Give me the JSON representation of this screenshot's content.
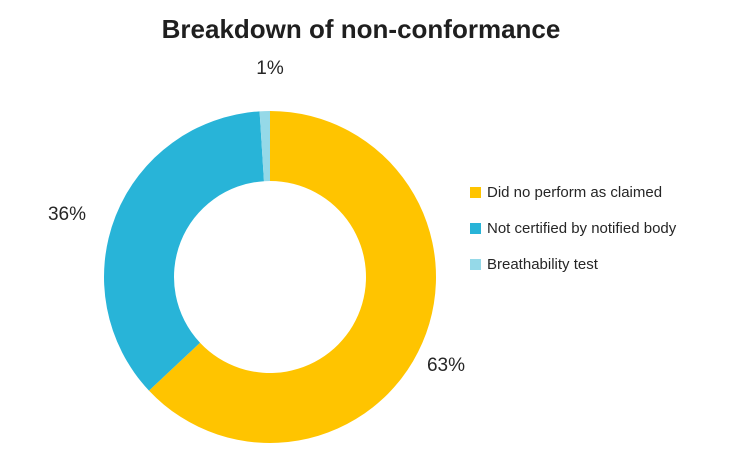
{
  "chart_data": {
    "type": "pie",
    "subtype": "donut",
    "title": "Breakdown of non-conformance",
    "direction": "clockwise",
    "start_angle_deg": 0,
    "inner_radius_ratio": 0.578,
    "legend_position": "right",
    "data_labels_position": "outside",
    "background_color": "#ffffff",
    "text_color": "#262626",
    "slices": [
      {
        "name": "Did no perform as claimed",
        "value": 63,
        "label": "63%",
        "color": "#FFC400"
      },
      {
        "name": "Not certified by notified body",
        "value": 36,
        "label": "36%",
        "color": "#28B4D8"
      },
      {
        "name": "Breathability test",
        "value": 1,
        "label": "1%",
        "color": "#95D9E8"
      }
    ]
  }
}
